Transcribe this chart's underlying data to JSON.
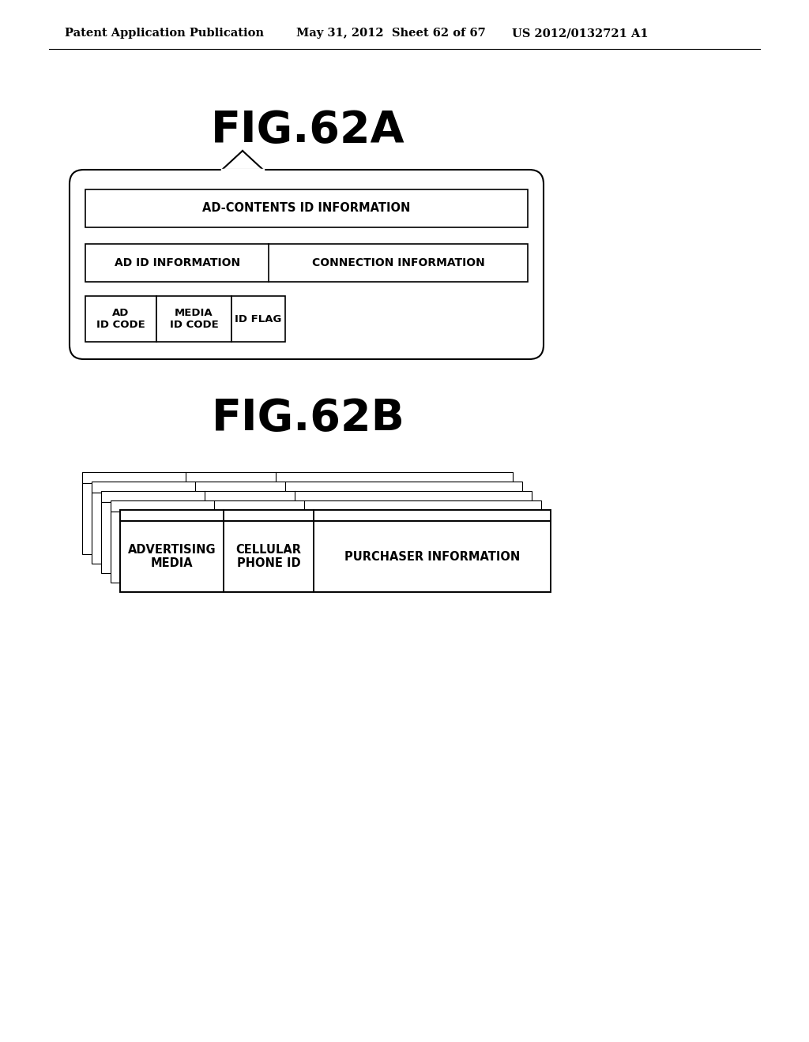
{
  "background_color": "#ffffff",
  "header_text": "Patent Application Publication",
  "header_date": "May 31, 2012  Sheet 62 of 67",
  "header_patent": "US 2012/0132721 A1",
  "fig62a_title": "FIG.62A",
  "fig62b_title": "FIG.62B",
  "ad_contents_label": "AD-CONTENTS ID INFORMATION",
  "ad_id_label": "AD ID INFORMATION",
  "connection_label": "CONNECTION INFORMATION",
  "ad_id_code_label": "AD\nID CODE",
  "media_id_code_label": "MEDIA\nID CODE",
  "id_flag_label": "ID FLAG",
  "adv_media_label": "ADVERTISING\nMEDIA",
  "cellular_label": "CELLULAR\nPHONE ID",
  "purchaser_label": "PURCHASER INFORMATION"
}
